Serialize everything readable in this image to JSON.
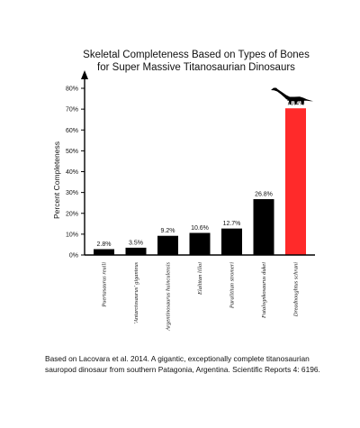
{
  "chart_data": {
    "type": "bar",
    "title_lines": [
      "Skeletal Completeness Based on Types of Bones",
      "for Super Massive Titanosaurian Dinosaurs"
    ],
    "xlabel": "",
    "ylabel": "Percent Completeness",
    "ylim": [
      0,
      80
    ],
    "y_ticks": [
      0,
      10,
      20,
      30,
      40,
      50,
      60,
      70,
      80
    ],
    "y_tick_labels": [
      "0%",
      "10%",
      "20%",
      "30%",
      "40%",
      "50%",
      "60%",
      "70%",
      "80%"
    ],
    "categories": [
      "Puertasaurus reuili",
      "'Antarctosaurus' giganteus",
      "Argentinosaurus huinculensis",
      "Elaltitan lilloi",
      "Paralititan stromeri",
      "Futalognkosaurus dukei",
      "Dreadnoughtus schrani"
    ],
    "values": [
      2.8,
      3.5,
      9.2,
      10.6,
      12.7,
      26.8,
      70.4
    ],
    "value_labels": [
      "2.8%",
      "3.5%",
      "9.2%",
      "10.6%",
      "12.7%",
      "26.8%",
      "70.4%"
    ],
    "colors": [
      "#000000",
      "#000000",
      "#000000",
      "#000000",
      "#000000",
      "#000000",
      "#ff2a2a"
    ],
    "grid": false,
    "icon": "sauropod-silhouette-icon"
  },
  "citation": "Based on Lacovara et al.  2014. A gigantic, exceptionally complete titanosaurian sauropod dinosaur from southern Patagonia, Argentina. Scientific Reports 4: 6196."
}
